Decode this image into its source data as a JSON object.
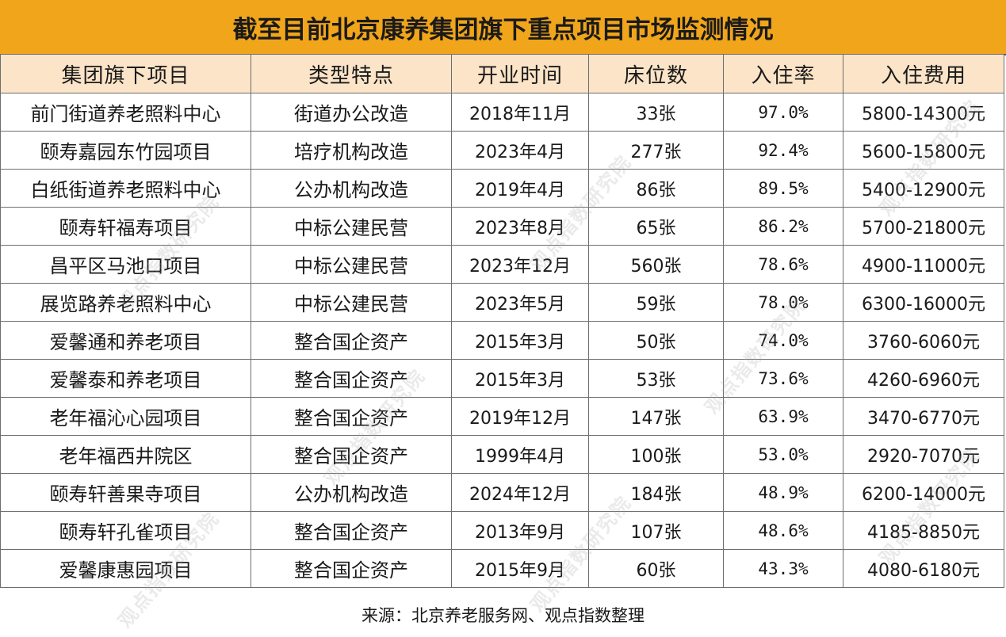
{
  "title": "截至目前北京康养集团旗下重点项目市场监测情况",
  "headers": [
    "集团旗下项目",
    "类型特点",
    "开业时间",
    "床位数",
    "入住率",
    "入住费用"
  ],
  "rows": [
    [
      "前门街道养老照料中心",
      "街道办公改造",
      "2018年11月",
      "33张",
      "97.0%",
      "5800-14300元"
    ],
    [
      "颐寿嘉园东竹园项目",
      "培疗机构改造",
      "2023年4月",
      "277张",
      "92.4%",
      "5600-15800元"
    ],
    [
      "白纸街道养老照料中心",
      "公办机构改造",
      "2019年4月",
      "86张",
      "89.5%",
      "5400-12900元"
    ],
    [
      "颐寿轩福寿项目",
      "中标公建民营",
      "2023年8月",
      "65张",
      "86.2%",
      "5700-21800元"
    ],
    [
      "昌平区马池口项目",
      "中标公建民营",
      "2023年12月",
      "560张",
      "78.6%",
      "4900-11000元"
    ],
    [
      "展览路养老照料中心",
      "中标公建民营",
      "2023年5月",
      "59张",
      "78.0%",
      "6300-16000元"
    ],
    [
      "爱馨通和养老项目",
      "整合国企资产",
      "2015年3月",
      "50张",
      "74.0%",
      "3760-6060元"
    ],
    [
      "爱馨泰和养老项目",
      "整合国企资产",
      "2015年3月",
      "53张",
      "73.6%",
      "4260-6960元"
    ],
    [
      "老年福沁心园项目",
      "整合国企资产",
      "2019年12月",
      "147张",
      "63.9%",
      "3470-6770元"
    ],
    [
      "老年福西井院区",
      "整合国企资产",
      "1999年4月",
      "100张",
      "53.0%",
      "2920-7070元"
    ],
    [
      "颐寿轩善果寺项目",
      "公办机构改造",
      "2024年12月",
      "184张",
      "48.9%",
      "6200-14000元"
    ],
    [
      "颐寿轩孔雀项目",
      "整合国企资产",
      "2013年9月",
      "107张",
      "48.6%",
      "4185-8850元"
    ],
    [
      "爱馨康惠园项目",
      "整合国企资产",
      "2015年9月",
      "60张",
      "43.3%",
      "4080-6180元"
    ]
  ],
  "source": "来源：北京养老服务网、观点指数整理",
  "watermark": "观点指数研究院",
  "colors": {
    "title_bg": "#f0a51b",
    "header_bg": "#fbe4c8",
    "border": "#6e6e6e"
  }
}
